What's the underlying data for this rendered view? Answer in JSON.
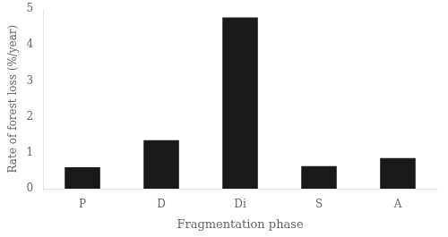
{
  "chart_data": {
    "type": "bar",
    "categories": [
      "P",
      "D",
      "Di",
      "S",
      "A"
    ],
    "values": [
      0.6,
      1.35,
      4.77,
      0.63,
      0.85
    ],
    "color": "#1a1a1a",
    "xlabel": "Fragmentation phase",
    "ylabel": "Rate of forest loss (%/year)",
    "ylim": [
      0,
      5
    ],
    "yticks": [
      0,
      1,
      2,
      3,
      4,
      5
    ],
    "grid": false
  }
}
